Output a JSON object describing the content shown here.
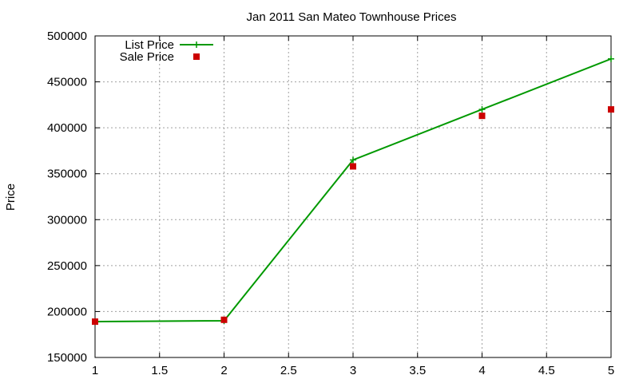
{
  "chart_data": {
    "type": "line",
    "title": "Jan 2011 San Mateo Townhouse Prices",
    "xlabel": "",
    "ylabel": "Price",
    "xlim": [
      1,
      5
    ],
    "ylim": [
      150000,
      500000
    ],
    "x_ticks": [
      "1",
      "1.5",
      "2",
      "2.5",
      "3",
      "3.5",
      "4",
      "4.5",
      "5"
    ],
    "y_ticks": [
      "150000",
      "200000",
      "250000",
      "300000",
      "350000",
      "400000",
      "450000",
      "500000"
    ],
    "grid": true,
    "legend_position": "top-left",
    "series": [
      {
        "name": "List Price",
        "style": "line-with-plus-points",
        "color": "#009900",
        "x": [
          1,
          2,
          3,
          4,
          5
        ],
        "values": [
          189000,
          190000,
          365000,
          420000,
          475000
        ]
      },
      {
        "name": "Sale Price",
        "style": "square-points",
        "color": "#cc0000",
        "x": [
          1,
          2,
          3,
          4,
          5
        ],
        "values": [
          189000,
          191000,
          358000,
          413000,
          420000
        ]
      }
    ]
  }
}
